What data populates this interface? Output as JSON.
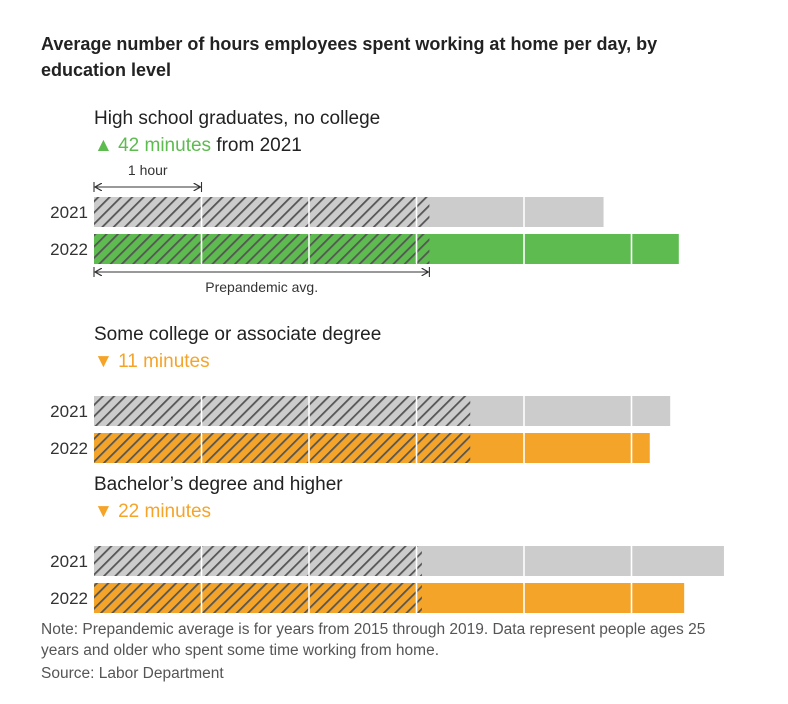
{
  "chart_data": {
    "type": "bar",
    "title_lines": [
      "Average number of hours employees spent working at home per day, by",
      "education level"
    ],
    "unit": "hours",
    "gridline_interval_hours": 1,
    "scale_label": "1 hour",
    "prepandemic_label": "Prepandemic avg.",
    "series": [
      "2021",
      "2022"
    ],
    "groups": [
      {
        "name": "High school graduates, no college",
        "change_arrow": "▲",
        "change_value": "42 minutes",
        "change_suffix": " from 2021",
        "change_color": "#5dbb4f",
        "prepandemic_avg": 3.12,
        "values": {
          "2021": 4.74,
          "2022": 5.44
        }
      },
      {
        "name": "Some college or associate degree",
        "change_arrow": "▼",
        "change_value": "11 minutes",
        "change_suffix": "",
        "change_color": "#f5a42a",
        "prepandemic_avg": 3.5,
        "values": {
          "2021": 5.36,
          "2022": 5.17
        }
      },
      {
        "name": "Bachelor’s degree and higher",
        "change_arrow": "▼",
        "change_value": "22 minutes",
        "change_suffix": "",
        "change_color": "#f5a42a",
        "prepandemic_avg": 3.05,
        "values": {
          "2021": 5.86,
          "2022": 5.49
        }
      }
    ],
    "note_lines": [
      "Note: Prepandemic average is for years from 2015 through 2019. Data represent people ages 25",
      "years and older who spent some time working from home."
    ],
    "source": "Source: Labor Department"
  },
  "colors": {
    "grey_2021": "#cccccc",
    "hatch_stripe": "#555555",
    "divider": "#ffffff"
  }
}
